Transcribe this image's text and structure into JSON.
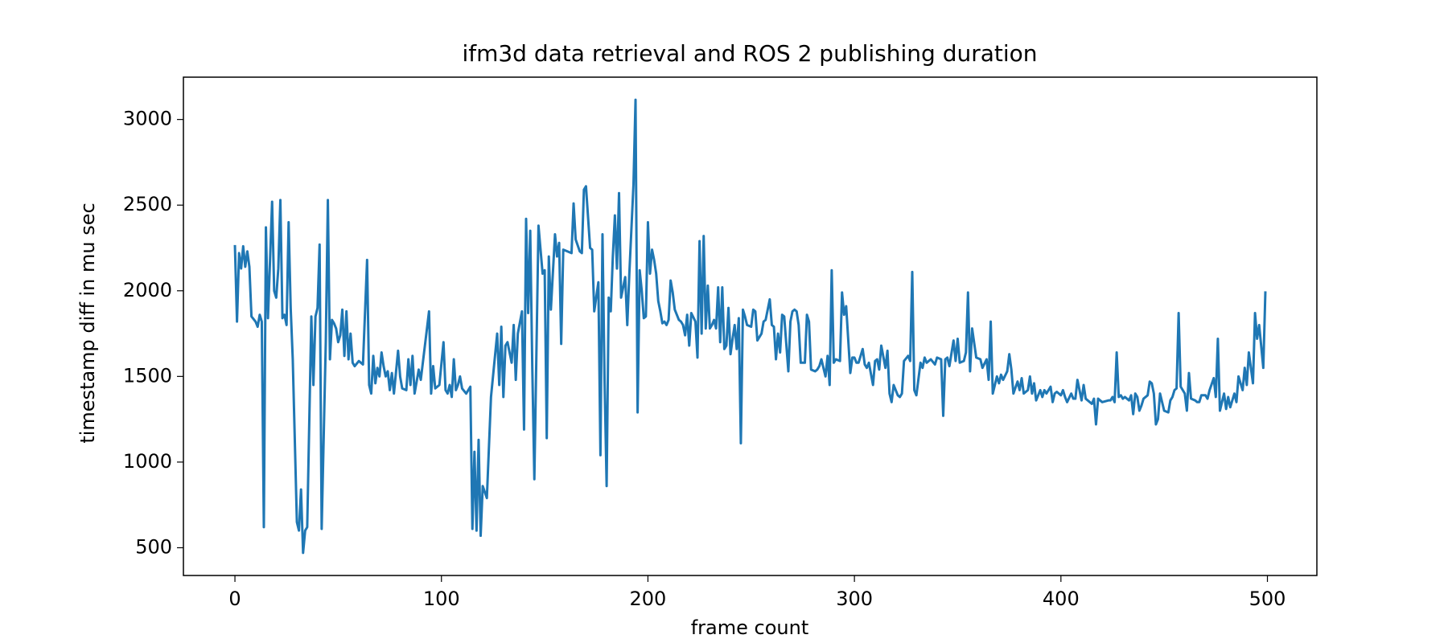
{
  "chart_data": {
    "type": "line",
    "title": "ifm3d data retrieval and ROS 2 publishing duration",
    "xlabel": "frame count",
    "ylabel": "timestamp diff in mu sec",
    "color": "#1f77b4",
    "xlim": [
      -24.95,
      523.95
    ],
    "ylim": [
      338,
      3247
    ],
    "xticks": [
      0,
      100,
      200,
      300,
      400,
      500
    ],
    "yticks": [
      500,
      1000,
      1500,
      2000,
      2500,
      3000
    ],
    "x": [
      0,
      1,
      2,
      3,
      4,
      5,
      6,
      7,
      8,
      10,
      11,
      12,
      13,
      14,
      15,
      16,
      18,
      19,
      20,
      21,
      22,
      23,
      24,
      25,
      26,
      27,
      28,
      30,
      31,
      32,
      33,
      34,
      35,
      37,
      38,
      39,
      40,
      41,
      42,
      44,
      45,
      46,
      47,
      48,
      49,
      50,
      51,
      52,
      53,
      54,
      55,
      56,
      57,
      58,
      60,
      62,
      64,
      65,
      66,
      67,
      68,
      69,
      70,
      71,
      72,
      73,
      74,
      75,
      76,
      77,
      79,
      80,
      81,
      83,
      84,
      85,
      86,
      87,
      89,
      90,
      94,
      95,
      96,
      97,
      99,
      101,
      102,
      103,
      104,
      105,
      106,
      107,
      108,
      109,
      110,
      112,
      114,
      115,
      116,
      117,
      118,
      119,
      120,
      122,
      124,
      127,
      128,
      129,
      130,
      131,
      132,
      134,
      135,
      136,
      137,
      139,
      140,
      141,
      142,
      143,
      144,
      145,
      147,
      149,
      150,
      151,
      152,
      153,
      155,
      156,
      157,
      158,
      159,
      161,
      163,
      164,
      165,
      167,
      168,
      169,
      170,
      172,
      173,
      174,
      176,
      177,
      178,
      179,
      180,
      181,
      182,
      183,
      184,
      185,
      186,
      187,
      189,
      190,
      191,
      193,
      194,
      195,
      196,
      197,
      198,
      199,
      200,
      201,
      202,
      203,
      204,
      205,
      206,
      207,
      208,
      209,
      210,
      211,
      212,
      213,
      215,
      216,
      217,
      218,
      219,
      220,
      221,
      223,
      224,
      225,
      226,
      227,
      228,
      229,
      230,
      231,
      232,
      233,
      234,
      235,
      236,
      237,
      238,
      239,
      240,
      241,
      242,
      243,
      244,
      245,
      246,
      247,
      248,
      250,
      251,
      252,
      253,
      255,
      256,
      257,
      259,
      260,
      261,
      262,
      263,
      264,
      265,
      266,
      268,
      269,
      270,
      271,
      272,
      273,
      274,
      276,
      277,
      278,
      279,
      281,
      282,
      283,
      284,
      286,
      287,
      288,
      289,
      290,
      291,
      293,
      294,
      295,
      296,
      298,
      299,
      300,
      301,
      302,
      304,
      305,
      306,
      307,
      309,
      310,
      311,
      312,
      313,
      315,
      316,
      317,
      318,
      319,
      321,
      322,
      323,
      324,
      326,
      327,
      328,
      329,
      330,
      332,
      333,
      334,
      335,
      337,
      339,
      340,
      342,
      343,
      344,
      345,
      346,
      348,
      349,
      350,
      351,
      353,
      354,
      355,
      356,
      357,
      359,
      361,
      362,
      364,
      365,
      366,
      367,
      369,
      370,
      371,
      372,
      374,
      375,
      376,
      377,
      379,
      380,
      381,
      382,
      384,
      385,
      386,
      387,
      388,
      390,
      391,
      392,
      393,
      395,
      396,
      397,
      398,
      400,
      401,
      402,
      403,
      405,
      406,
      407,
      408,
      410,
      411,
      412,
      413,
      415,
      416,
      417,
      418,
      420,
      423,
      424,
      425,
      426,
      427,
      428,
      429,
      430,
      431,
      433,
      434,
      435,
      436,
      437,
      438,
      439,
      440,
      442,
      443,
      444,
      445,
      446,
      447,
      448,
      449,
      450,
      452,
      453,
      454,
      455,
      456,
      457,
      458,
      460,
      461,
      462,
      463,
      465,
      466,
      467,
      468,
      470,
      471,
      472,
      474,
      475,
      476,
      477,
      479,
      480,
      481,
      482,
      484,
      485,
      486,
      488,
      489,
      490,
      491,
      493,
      494,
      495,
      496,
      498,
      499
    ],
    "values": [
      2260,
      1820,
      2220,
      2130,
      2260,
      2140,
      2230,
      2140,
      1850,
      1820,
      1790,
      1860,
      1820,
      620,
      2370,
      1840,
      2520,
      2000,
      1960,
      2130,
      2530,
      1840,
      1860,
      1800,
      2400,
      1900,
      1600,
      650,
      600,
      840,
      470,
      600,
      620,
      1850,
      1450,
      1850,
      1900,
      2270,
      610,
      1700,
      2530,
      1600,
      1830,
      1810,
      1780,
      1700,
      1740,
      1890,
      1620,
      1880,
      1600,
      1750,
      1580,
      1560,
      1590,
      1570,
      2180,
      1450,
      1400,
      1620,
      1460,
      1550,
      1500,
      1640,
      1560,
      1500,
      1530,
      1420,
      1520,
      1400,
      1650,
      1500,
      1430,
      1420,
      1600,
      1450,
      1620,
      1400,
      1540,
      1480,
      1880,
      1400,
      1560,
      1430,
      1450,
      1700,
      1420,
      1400,
      1450,
      1380,
      1600,
      1420,
      1450,
      1500,
      1430,
      1400,
      1440,
      610,
      1060,
      600,
      1130,
      570,
      860,
      790,
      1380,
      1750,
      1450,
      1790,
      1380,
      1680,
      1700,
      1580,
      1800,
      1480,
      1750,
      1880,
      1190,
      2420,
      1870,
      2350,
      1550,
      900,
      2380,
      2100,
      2120,
      1140,
      2200,
      1890,
      2330,
      2200,
      2280,
      1690,
      2240,
      2230,
      2220,
      2510,
      2300,
      2230,
      2220,
      2590,
      2610,
      2250,
      2240,
      1880,
      2050,
      1040,
      2330,
      1480,
      860,
      1960,
      1880,
      2200,
      2440,
      2130,
      2570,
      1960,
      2080,
      1800,
      2100,
      2620,
      3115,
      1290,
      2120,
      2000,
      1840,
      1850,
      2400,
      2100,
      2240,
      2180,
      2100,
      1940,
      1880,
      1810,
      1820,
      1800,
      1830,
      2060,
      1990,
      1890,
      1830,
      1820,
      1800,
      1740,
      1860,
      1680,
      1870,
      1820,
      1610,
      2290,
      1750,
      2320,
      1780,
      2030,
      1780,
      1800,
      1830,
      1780,
      2020,
      1700,
      2020,
      1660,
      1680,
      1900,
      1630,
      1720,
      1800,
      1660,
      1840,
      1110,
      1890,
      1850,
      1800,
      1790,
      1890,
      1880,
      1710,
      1750,
      1820,
      1830,
      1950,
      1800,
      1790,
      1600,
      1750,
      1640,
      1860,
      1850,
      1530,
      1820,
      1880,
      1890,
      1880,
      1800,
      1580,
      1580,
      1860,
      1820,
      1540,
      1530,
      1540,
      1560,
      1600,
      1500,
      1620,
      1450,
      2120,
      1580,
      1600,
      1590,
      1990,
      1860,
      1910,
      1520,
      1610,
      1610,
      1580,
      1580,
      1660,
      1570,
      1550,
      1580,
      1450,
      1590,
      1600,
      1540,
      1680,
      1550,
      1650,
      1400,
      1350,
      1450,
      1390,
      1380,
      1400,
      1590,
      1620,
      1590,
      2110,
      1420,
      1390,
      1580,
      1550,
      1610,
      1580,
      1600,
      1570,
      1610,
      1600,
      1270,
      1600,
      1610,
      1560,
      1710,
      1590,
      1720,
      1580,
      1590,
      1640,
      1990,
      1530,
      1780,
      1610,
      1600,
      1550,
      1600,
      1480,
      1820,
      1400,
      1500,
      1460,
      1510,
      1480,
      1530,
      1630,
      1540,
      1400,
      1470,
      1420,
      1490,
      1400,
      1420,
      1500,
      1400,
      1460,
      1360,
      1420,
      1380,
      1420,
      1400,
      1440,
      1350,
      1400,
      1410,
      1390,
      1420,
      1380,
      1350,
      1400,
      1370,
      1370,
      1480,
      1360,
      1450,
      1370,
      1360,
      1340,
      1370,
      1220,
      1370,
      1350,
      1360,
      1360,
      1380,
      1350,
      1640,
      1380,
      1390,
      1370,
      1380,
      1360,
      1390,
      1280,
      1400,
      1380,
      1300,
      1330,
      1370,
      1390,
      1470,
      1460,
      1400,
      1220,
      1250,
      1400,
      1350,
      1300,
      1290,
      1360,
      1380,
      1420,
      1430,
      1870,
      1440,
      1400,
      1300,
      1520,
      1370,
      1360,
      1350,
      1350,
      1390,
      1390,
      1370,
      1420,
      1490,
      1380,
      1720,
      1300,
      1400,
      1310,
      1380,
      1320,
      1400,
      1350,
      1500,
      1420,
      1550,
      1450,
      1640,
      1460,
      1870,
      1720,
      1800,
      1550,
      1990
    ]
  }
}
